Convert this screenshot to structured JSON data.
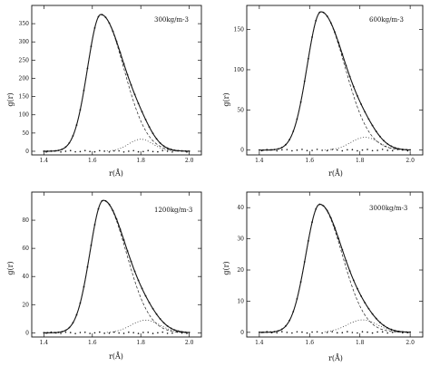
{
  "chart_data": [
    {
      "type": "line",
      "title": "300kg/m-3",
      "xlabel": "r(Å)",
      "ylabel": "g(r)",
      "xlim": [
        1.35,
        2.05
      ],
      "ylim": [
        -10,
        400
      ],
      "xticks": [
        1.4,
        1.6,
        1.8,
        2.0
      ],
      "xtick_labels": [
        "1.4",
        "1.6",
        "1.8",
        "2.0"
      ],
      "yticks": [
        0,
        50,
        100,
        150,
        200,
        250,
        300,
        350
      ],
      "ytick_labels": [
        "0",
        "50",
        "100",
        "150",
        "200",
        "250",
        "300",
        "350"
      ],
      "peak": {
        "x": 1.635,
        "y": 375,
        "width_left": 0.055,
        "width_right": 0.095
      },
      "shoulder": {
        "x": 1.8,
        "y": 33,
        "width": 0.05
      },
      "series": [
        {
          "style": "solid",
          "x": [
            1.4,
            1.45,
            1.5,
            1.55,
            1.6,
            1.635,
            1.65,
            1.7,
            1.75,
            1.8,
            1.85,
            1.9,
            1.95,
            2.0
          ],
          "y": [
            0,
            1,
            12,
            110,
            316,
            375,
            368,
            280,
            180,
            100,
            55,
            25,
            11,
            4
          ]
        },
        {
          "style": "dashed",
          "x": [
            1.4,
            1.5,
            1.55,
            1.6,
            1.635,
            1.7,
            1.75,
            1.8,
            1.85,
            1.9,
            1.95,
            2.0
          ],
          "y": [
            0,
            12,
            110,
            316,
            375,
            266,
            162,
            81,
            31,
            9,
            2,
            0
          ]
        },
        {
          "style": "dotted",
          "x": [
            1.65,
            1.7,
            1.75,
            1.8,
            1.85,
            1.9,
            1.95,
            2.0
          ],
          "y": [
            0,
            4,
            17,
            33,
            32,
            15,
            4,
            1
          ]
        }
      ]
    },
    {
      "type": "line",
      "title": "600kg/m-3",
      "xlabel": "r(Å)",
      "ylabel": "g(r)",
      "xlim": [
        1.35,
        2.05
      ],
      "ylim": [
        -6,
        180
      ],
      "xticks": [
        1.4,
        1.6,
        1.8,
        2.0
      ],
      "xtick_labels": [
        "1.4",
        "1.6",
        "1.8",
        "2.0"
      ],
      "yticks": [
        0,
        50,
        100,
        150
      ],
      "ytick_labels": [
        "0",
        "50",
        "100",
        "150"
      ],
      "peak": {
        "x": 1.645,
        "y": 172,
        "width_left": 0.055,
        "width_right": 0.095
      },
      "shoulder": {
        "x": 1.82,
        "y": 16,
        "width": 0.055
      },
      "series": [
        {
          "style": "solid",
          "x": [
            1.4,
            1.45,
            1.5,
            1.55,
            1.6,
            1.645,
            1.7,
            1.75,
            1.8,
            1.85,
            1.9,
            1.95,
            2.0
          ],
          "y": [
            0,
            0,
            5,
            40,
            130,
            172,
            150,
            100,
            60,
            36,
            20,
            9,
            3
          ]
        },
        {
          "style": "dashed",
          "x": [
            1.4,
            1.5,
            1.55,
            1.6,
            1.645,
            1.7,
            1.75,
            1.8,
            1.85,
            1.9,
            1.95,
            2.0
          ],
          "y": [
            0,
            5,
            40,
            130,
            172,
            145,
            92,
            50,
            22,
            8,
            2,
            0
          ]
        },
        {
          "style": "dotted",
          "x": [
            1.65,
            1.7,
            1.75,
            1.8,
            1.85,
            1.9,
            1.95,
            2.0
          ],
          "y": [
            0,
            3,
            8,
            15,
            15,
            10,
            5,
            2
          ]
        }
      ]
    },
    {
      "type": "line",
      "title": "1200kg/m-3",
      "xlabel": "r(Å)",
      "ylabel": "g(r)",
      "xlim": [
        1.35,
        2.05
      ],
      "ylim": [
        -3,
        100
      ],
      "xticks": [
        1.4,
        1.6,
        1.8,
        2.0
      ],
      "xtick_labels": [
        "1.4",
        "1.6",
        "1.8",
        "2.0"
      ],
      "yticks": [
        0,
        20,
        40,
        60,
        80
      ],
      "ytick_labels": [
        "0",
        "20",
        "40",
        "60",
        "80"
      ],
      "peak": {
        "x": 1.645,
        "y": 94,
        "width_left": 0.055,
        "width_right": 0.095
      },
      "shoulder": {
        "x": 1.82,
        "y": 9,
        "width": 0.06
      },
      "series": [
        {
          "style": "solid",
          "x": [
            1.4,
            1.45,
            1.5,
            1.55,
            1.6,
            1.645,
            1.7,
            1.75,
            1.8,
            1.85,
            1.9,
            1.95,
            2.0
          ],
          "y": [
            0,
            0,
            3,
            25,
            72,
            94,
            82,
            55,
            30,
            17,
            9,
            4,
            2
          ]
        },
        {
          "style": "dashed",
          "x": [
            1.4,
            1.5,
            1.55,
            1.6,
            1.645,
            1.7,
            1.75,
            1.8,
            1.85,
            1.9,
            1.95,
            2.0
          ],
          "y": [
            0,
            3,
            25,
            72,
            94,
            78,
            50,
            26,
            11,
            4,
            1,
            0
          ]
        },
        {
          "style": "dotted",
          "x": [
            1.65,
            1.7,
            1.75,
            1.8,
            1.85,
            1.9,
            1.95,
            2.0
          ],
          "y": [
            0,
            2,
            5,
            8,
            9,
            6,
            3,
            1
          ]
        }
      ]
    },
    {
      "type": "line",
      "title": "3000kg/m-3",
      "xlabel": "r(Å)",
      "ylabel": "g(r)",
      "xlim": [
        1.35,
        2.05
      ],
      "ylim": [
        -1.5,
        45
      ],
      "xticks": [
        1.4,
        1.6,
        1.8,
        2.0
      ],
      "xtick_labels": [
        "1.4",
        "1.6",
        "1.8",
        "2.0"
      ],
      "yticks": [
        0,
        10,
        20,
        30,
        40
      ],
      "ytick_labels": [
        "0",
        "10",
        "20",
        "30",
        "40"
      ],
      "peak": {
        "x": 1.64,
        "y": 41,
        "width_left": 0.055,
        "width_right": 0.09
      },
      "shoulder": {
        "x": 1.81,
        "y": 4,
        "width": 0.06
      },
      "series": [
        {
          "style": "solid",
          "x": [
            1.4,
            1.45,
            1.5,
            1.55,
            1.6,
            1.64,
            1.7,
            1.75,
            1.8,
            1.85,
            1.9,
            1.95,
            2.0
          ],
          "y": [
            0,
            0,
            1.5,
            11,
            31,
            41,
            34,
            21,
            11,
            6,
            3,
            1.3,
            0.5
          ]
        },
        {
          "style": "dashed",
          "x": [
            1.4,
            1.5,
            1.55,
            1.6,
            1.64,
            1.7,
            1.75,
            1.8,
            1.85,
            1.9,
            1.95,
            2.0
          ],
          "y": [
            0,
            1.5,
            11,
            31,
            41,
            32,
            19,
            9,
            3.5,
            1,
            0.2,
            0
          ]
        },
        {
          "style": "dotted",
          "x": [
            1.65,
            1.7,
            1.75,
            1.8,
            1.85,
            1.9,
            1.95,
            2.0
          ],
          "y": [
            0,
            0.8,
            2.2,
            3.8,
            4,
            3,
            1.5,
            0.6
          ]
        }
      ]
    }
  ]
}
